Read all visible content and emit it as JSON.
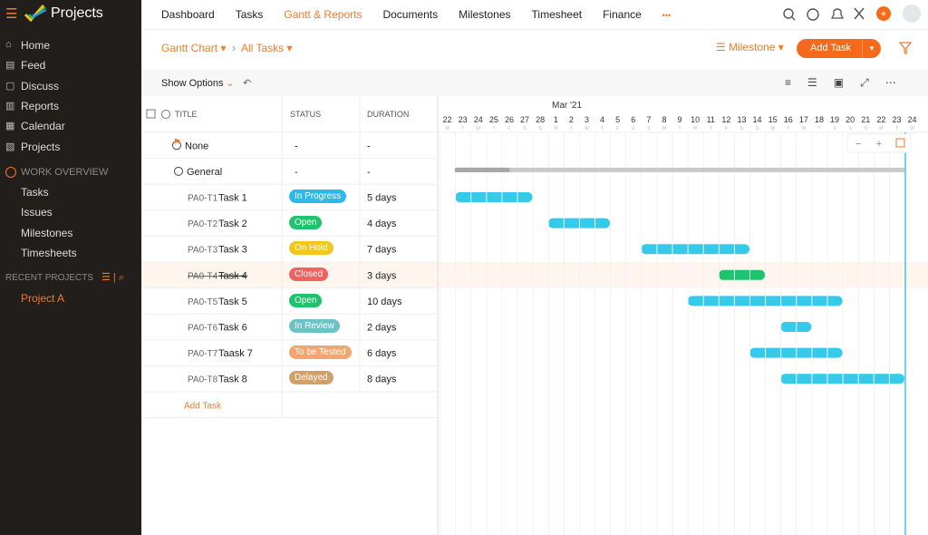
{
  "sidebar": {
    "brand": "Projects",
    "nav": [
      "Home",
      "Feed",
      "Discuss",
      "Reports",
      "Calendar",
      "Projects"
    ],
    "work_overview": {
      "title": "WORK OVERVIEW",
      "items": [
        "Tasks",
        "Issues",
        "Milestones",
        "Timesheets"
      ]
    },
    "recent_projects": {
      "title": "RECENT PROJECTS",
      "items": [
        "Project A"
      ]
    }
  },
  "top_nav": {
    "tabs": [
      "Dashboard",
      "Tasks",
      "Gantt & Reports",
      "Documents",
      "Milestones",
      "Timesheet",
      "Finance"
    ],
    "active": 2,
    "more": "•••"
  },
  "toolbar": {
    "view": "Gantt Chart",
    "filter": "All Tasks",
    "milestone": "Milestone",
    "add_task": "Add Task",
    "show_options": "Show Options"
  },
  "table": {
    "columns": [
      "TITLE",
      "STATUS",
      "DURATION"
    ],
    "milestone_row": {
      "title": "None",
      "status": "-",
      "duration": "-"
    },
    "tasklist_row": {
      "title": "General",
      "status": "-",
      "duration": "-"
    },
    "tasks": [
      {
        "id": "PA0-T1",
        "name": "Task 1",
        "status": "In Progress",
        "status_color": "#2fb8ea",
        "duration": "5 days"
      },
      {
        "id": "PA0-T2",
        "name": "Task 2",
        "status": "Open",
        "status_color": "#1ec46b",
        "duration": "4 days"
      },
      {
        "id": "PA0-T3",
        "name": "Task 3",
        "status": "On Hold",
        "status_color": "#f4c61c",
        "duration": "7 days"
      },
      {
        "id": "PA0-T4",
        "name": "Task 4",
        "status": "Closed",
        "status_color": "#f0625f",
        "duration": "3 days",
        "struck": true
      },
      {
        "id": "PA0-T5",
        "name": "Task 5",
        "status": "Open",
        "status_color": "#1ec46b",
        "duration": "10 days"
      },
      {
        "id": "PA0-T6",
        "name": "Task 6",
        "status": "In Review",
        "status_color": "#6cc2c5",
        "duration": "2 days"
      },
      {
        "id": "PA0-T7",
        "name": "Taask 7",
        "status": "To be Tested",
        "status_color": "#f7a56e",
        "duration": "6 days"
      },
      {
        "id": "PA0-T8",
        "name": "Task 8",
        "status": "Delayed",
        "status_color": "#d29f66",
        "duration": "8 days"
      }
    ],
    "add_task": "Add Task"
  },
  "timeline": {
    "month": "Mar '21",
    "days": [
      "22",
      "23",
      "24",
      "25",
      "26",
      "27",
      "28",
      "1",
      "2",
      "3",
      "4",
      "5",
      "6",
      "7",
      "8",
      "9",
      "10",
      "11",
      "12",
      "13",
      "14",
      "15",
      "16",
      "17",
      "18",
      "19",
      "20",
      "21",
      "22",
      "23",
      "24"
    ],
    "weekdays": [
      "M",
      "T",
      "W",
      "T",
      "F",
      "S",
      "S",
      "M",
      "T",
      "W",
      "T",
      "F",
      "S",
      "S",
      "M",
      "T",
      "W",
      "T",
      "F",
      "S",
      "S",
      "M",
      "T",
      "W",
      "T",
      "F",
      "S",
      "S",
      "M",
      "T",
      "W"
    ]
  }
}
